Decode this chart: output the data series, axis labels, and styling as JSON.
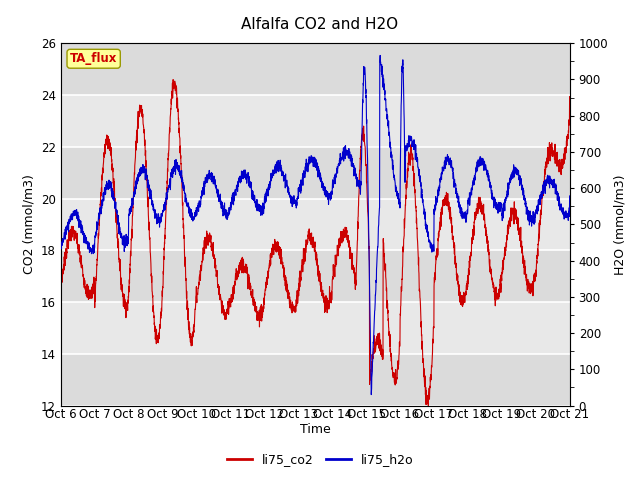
{
  "title": "Alfalfa CO2 and H2O",
  "xlabel": "Time",
  "ylabel_left": "CO2 (mmol/m3)",
  "ylabel_right": "H2O (mmol/m3)",
  "ylim_left": [
    12,
    26
  ],
  "ylim_right": [
    0,
    1000
  ],
  "yticks_left": [
    12,
    14,
    16,
    18,
    20,
    22,
    24,
    26
  ],
  "yticks_right": [
    0,
    100,
    200,
    300,
    400,
    500,
    600,
    700,
    800,
    900,
    1000
  ],
  "xtick_labels": [
    "Oct 6",
    "Oct 7",
    "Oct 8",
    "Oct 9",
    "Oct 10",
    "Oct 11",
    "Oct 12",
    "Oct 13",
    "Oct 14",
    "Oct 15",
    "Oct 16",
    "Oct 17",
    "Oct 18",
    "Oct 19",
    "Oct 20",
    "Oct 21"
  ],
  "background_color": "#ffffff",
  "plot_bg_color": "#e8e8e8",
  "plot_bg_alt": "#d8d8d8",
  "grid_color": "#ffffff",
  "line_co2_color": "#cc0000",
  "line_h2o_color": "#0000cc",
  "tag_text": "TA_flux",
  "tag_bg": "#ffff99",
  "tag_border": "#999900",
  "legend_co2": "li75_co2",
  "legend_h2o": "li75_h2o",
  "title_fontsize": 11,
  "axis_label_fontsize": 9,
  "tick_fontsize": 8.5
}
